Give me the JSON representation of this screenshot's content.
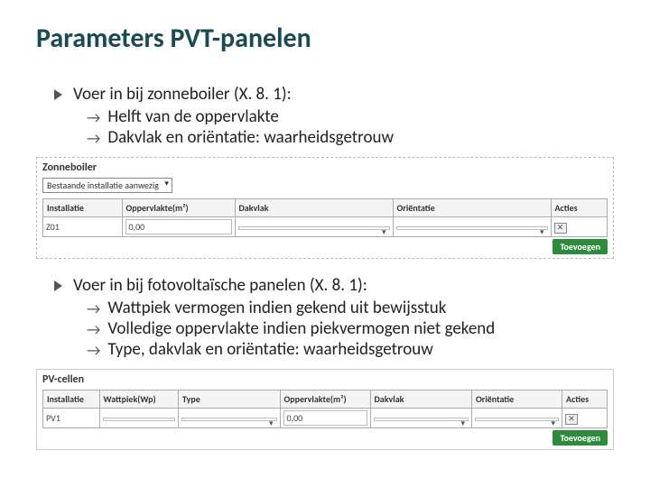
{
  "title": "Parameters PVT-panelen",
  "block1": {
    "l1": "Voer in bij zonneboiler (X. 8. 1):",
    "l2": [
      "Helft van de oppervlakte",
      "Dakvlak en oriëntatie: waarheidsgetrouw"
    ]
  },
  "form1": {
    "section_title": "Zonneboiler",
    "dropdown_value": "Bestaande installatie aanwezig",
    "columns": [
      "Installatie",
      "Oppervlakte(m²)",
      "Dakvlak",
      "Oriëntatie",
      "Acties"
    ],
    "col_widths": [
      "14%",
      "20%",
      "28%",
      "28%",
      "10%"
    ],
    "row": {
      "installatie": "Z01",
      "oppervlakte": "0,00",
      "dakvlak": "",
      "orientatie": ""
    },
    "add_label": "Toevoegen"
  },
  "block2": {
    "l1": "Voer in bij fotovoltaïsche panelen (X. 8. 1):",
    "l2": [
      "Wattpiek vermogen indien gekend uit bewijsstuk",
      "Volledige oppervlakte indien piekvermogen niet gekend",
      "Type, dakvlak en oriëntatie: waarheidsgetrouw"
    ]
  },
  "form2": {
    "section_title": "PV-cellen",
    "columns": [
      "Installatie",
      "Wattpiek(Wp)",
      "Type",
      "Oppervlakte(m²)",
      "Dakvlak",
      "Oriëntatie",
      "Acties"
    ],
    "col_widths": [
      "10%",
      "14%",
      "18%",
      "16%",
      "18%",
      "16%",
      "8%"
    ],
    "row": {
      "installatie": "PV1",
      "wattpiek": "",
      "type": "",
      "oppervlakte": "0,00",
      "dakvlak": "",
      "orientatie": ""
    },
    "add_label": "Toevoegen"
  },
  "colors": {
    "title": "#1a4a52",
    "add_btn_bg": "#2e8b3d",
    "border": "#aaaaaa"
  }
}
